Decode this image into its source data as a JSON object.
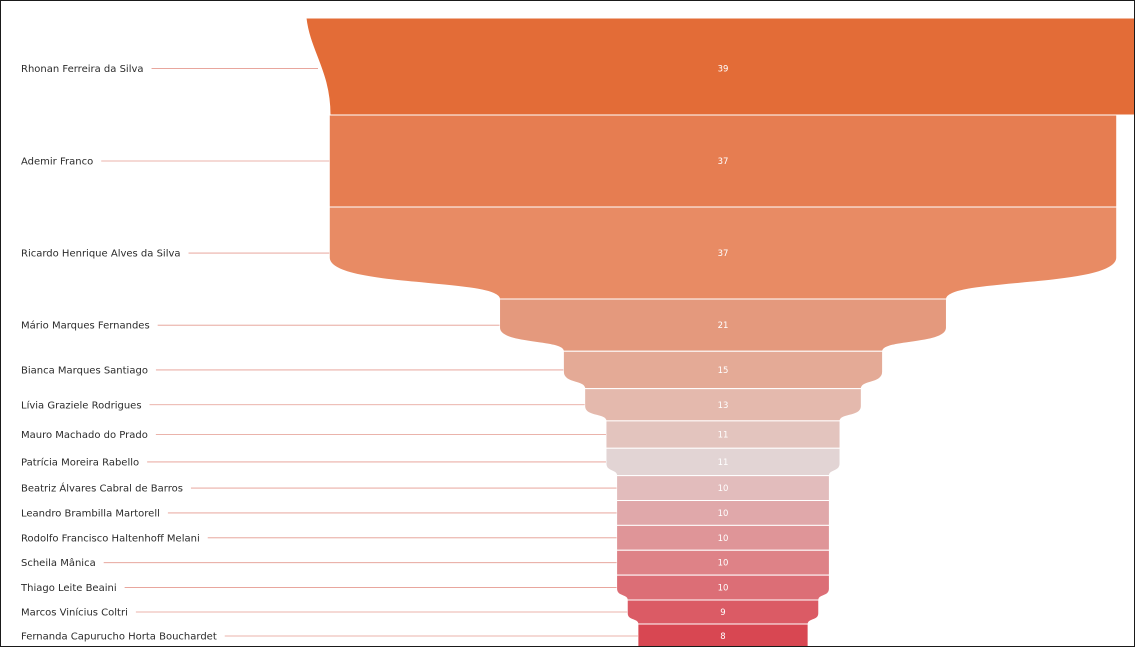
{
  "chart_data": {
    "type": "funnel",
    "title": "",
    "categories": [
      "Rhonan Ferreira da Silva",
      "Ademir Franco",
      "Ricardo Henrique Alves da Silva",
      "Mário Marques Fernandes",
      "Bianca Marques Santiago",
      "Lívia Graziele Rodrigues",
      "Mauro Machado do Prado",
      "Patrícia Moreira Rabello",
      "Beatriz Álvares Cabral de Barros",
      "Leandro Brambilla Martorell",
      "Rodolfo Francisco Haltenhoff Melani",
      "Scheila Mânica",
      "Thiago Leite Beaini",
      "Marcos Vinícius Coltri",
      "Fernanda Capurucho Horta Bouchardet"
    ],
    "values": [
      39,
      37,
      37,
      21,
      15,
      13,
      11,
      11,
      10,
      10,
      10,
      10,
      10,
      9,
      8
    ],
    "colors": [
      "#e36c37",
      "#e67d51",
      "#e88b64",
      "#e4997d",
      "#e4aa96",
      "#e4b9ad",
      "#e3c4be",
      "#e2d4d4",
      "#e2bcbc",
      "#e0a8aa",
      "#df9598",
      "#de8287",
      "#dc6e76",
      "#db5b65",
      "#d84752"
    ],
    "leader_line_color": "#e49a8f"
  }
}
